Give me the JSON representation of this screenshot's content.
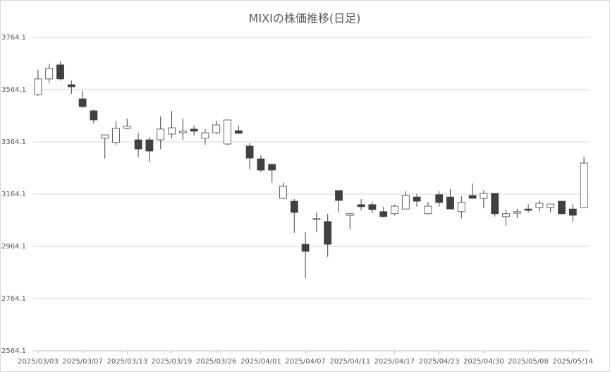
{
  "chart_data": {
    "type": "candlestick",
    "title": "MIXIの株価推移(日足)",
    "categories": [
      "2025/03/03",
      null,
      null,
      null,
      "2025/03/07",
      null,
      null,
      null,
      "2025/03/13",
      null,
      null,
      null,
      "2025/03/19",
      null,
      null,
      null,
      "2025/03/26",
      null,
      null,
      null,
      "2025/04/01",
      null,
      null,
      null,
      "2025/04/07",
      null,
      null,
      null,
      "2025/04/11",
      null,
      null,
      null,
      "2025/04/17",
      null,
      null,
      null,
      "2025/04/23",
      null,
      null,
      null,
      "2025/04/30",
      null,
      null,
      null,
      "2025/05/08",
      null,
      null,
      null,
      "2025/05/14",
      null
    ],
    "open": [
      3545,
      3605,
      3659,
      3583,
      3529,
      3483,
      3378,
      3362,
      3416,
      3372,
      3372,
      3372,
      3394,
      3399,
      3413,
      3378,
      3399,
      3356,
      3407,
      3348,
      3299,
      3278,
      3148,
      3137,
      2972,
      3067,
      3059,
      3178,
      3083,
      3124,
      3124,
      3097,
      3089,
      3107,
      3153,
      3089,
      3162,
      3153,
      3097,
      3159,
      3148,
      3167,
      3078,
      3091,
      3107,
      3113,
      3113,
      3137,
      3107,
      3113
    ],
    "high": [
      3640,
      3664,
      3672,
      3599,
      3559,
      3488,
      3391,
      3445,
      3453,
      3399,
      3383,
      3461,
      3483,
      3453,
      3426,
      3413,
      3445,
      3448,
      3426,
      3359,
      3313,
      3278,
      3208,
      3145,
      3018,
      3094,
      3089,
      3178,
      3089,
      3145,
      3134,
      3116,
      3124,
      3175,
      3164,
      3134,
      3175,
      3183,
      3156,
      3205,
      3178,
      3167,
      3105,
      3107,
      3126,
      3140,
      3126,
      3137,
      3126,
      3307
    ],
    "low": [
      3540,
      3589,
      3599,
      3548,
      3494,
      3434,
      3300,
      3353,
      3413,
      3307,
      3286,
      3337,
      3378,
      3372,
      3389,
      3353,
      3394,
      3353,
      3394,
      3259,
      3248,
      3208,
      3145,
      3016,
      2843,
      3018,
      2924,
      3094,
      3029,
      3102,
      3091,
      3075,
      3083,
      3107,
      3116,
      3086,
      3116,
      3107,
      3072,
      3148,
      3110,
      3078,
      3043,
      3072,
      3094,
      3097,
      3094,
      3086,
      3059,
      3113
    ],
    "close": [
      3605,
      3645,
      3605,
      3575,
      3499,
      3448,
      3391,
      3416,
      3424,
      3337,
      3329,
      3413,
      3418,
      3405,
      3405,
      3399,
      3429,
      3448,
      3397,
      3302,
      3256,
      3256,
      3194,
      3094,
      2945,
      3070,
      2972,
      3140,
      3089,
      3116,
      3105,
      3078,
      3118,
      3159,
      3137,
      3118,
      3132,
      3107,
      3132,
      3148,
      3167,
      3089,
      3089,
      3097,
      3102,
      3129,
      3126,
      3089,
      3083,
      3283
    ],
    "up_color": "#ffffff",
    "down_color": "#404040",
    "ylim": [
      2564.1,
      3764.1
    ],
    "yticks": [
      2564.1,
      2764.1,
      2964.1,
      3164.1,
      3364.1,
      3564.1,
      3764.1
    ],
    "grid": true
  }
}
